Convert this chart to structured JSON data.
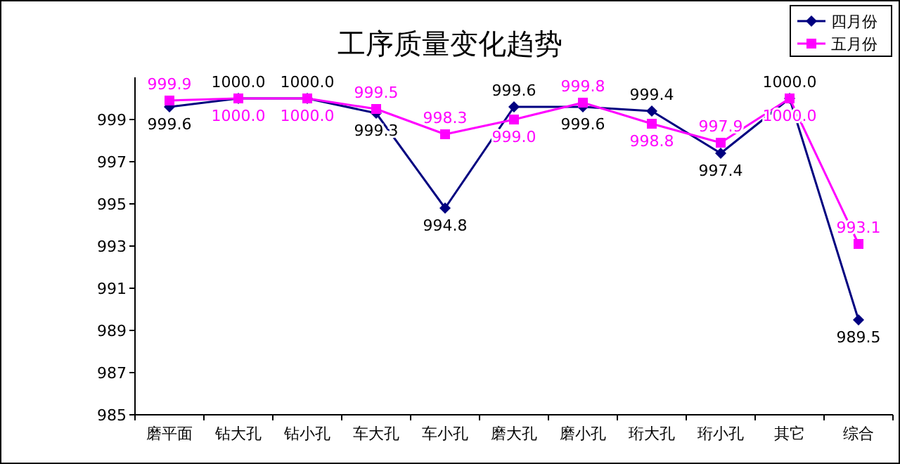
{
  "chart_data": {
    "type": "line",
    "title": "工序质量变化趋势",
    "categories": [
      "磨平面",
      "钻大孔",
      "钻小孔",
      "车大孔",
      "车小孔",
      "磨大孔",
      "磨小孔",
      "珩大孔",
      "珩小孔",
      "其它",
      "综合"
    ],
    "series": [
      {
        "name": "四月份",
        "color": "#000080",
        "marker": "diamond",
        "values": [
          999.6,
          1000.0,
          1000.0,
          999.3,
          994.8,
          999.6,
          999.6,
          999.4,
          997.4,
          1000.0,
          989.5
        ],
        "value_labels": [
          "999.6",
          "1000.0",
          "1000.0",
          "999.3",
          "994.8",
          "999.6",
          "999.6",
          "999.4",
          "997.4",
          "1000.0",
          "989.5"
        ]
      },
      {
        "name": "五月份",
        "color": "#ff00ff",
        "marker": "square",
        "values": [
          999.9,
          1000.0,
          1000.0,
          999.5,
          998.3,
          999.0,
          999.8,
          998.8,
          997.9,
          1000.0,
          993.1
        ],
        "value_labels": [
          "999.9",
          "1000.0",
          "1000.0",
          "999.5",
          "998.3",
          "999.0",
          "999.8",
          "998.8",
          "997.9",
          "1000.0",
          "993.1"
        ]
      }
    ],
    "ylim": [
      985,
      1001
    ],
    "yticks": [
      985,
      987,
      989,
      991,
      993,
      995,
      997,
      999
    ],
    "legend": "top right"
  }
}
